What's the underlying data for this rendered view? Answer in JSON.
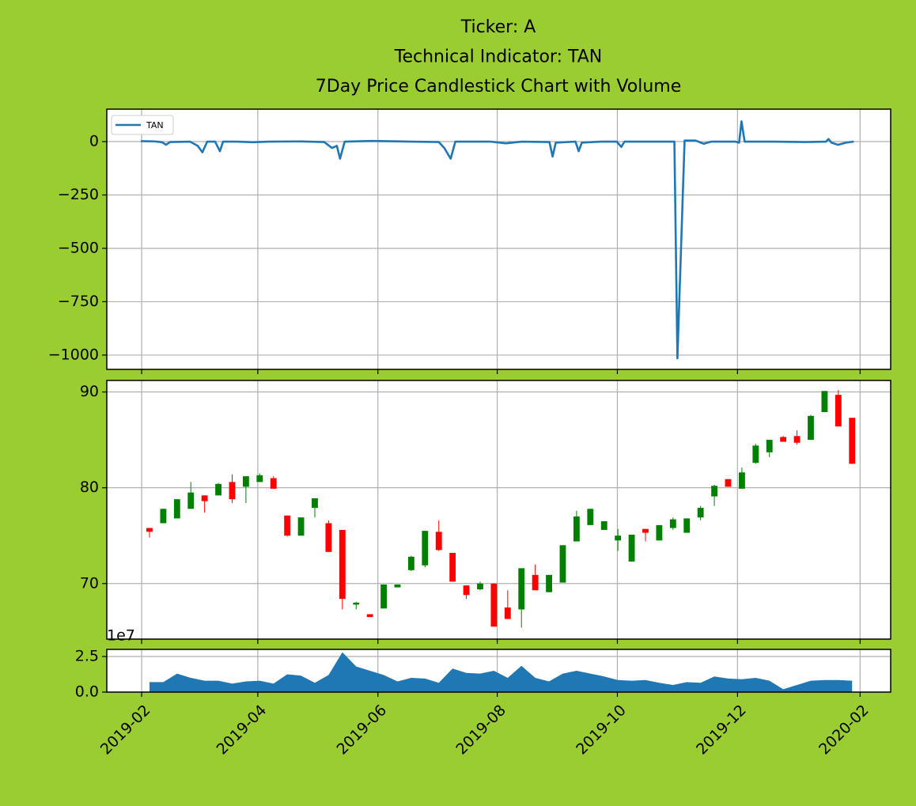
{
  "chart_data": [
    {
      "type": "line",
      "title": [
        "Ticker: A",
        "Technical Indicator: TAN",
        "7Day Price Candlestick Chart with Volume"
      ],
      "series": [
        {
          "name": "TAN",
          "color": "#1f77b4",
          "x": [
            -0.63,
            0.34,
            0.92,
            1.2,
            1.49,
            2.93,
            3.5,
            3.84,
            4.19,
            4.76,
            5.11,
            5.34,
            6.37,
            7.52,
            8.66,
            10.96,
            12.68,
            13.25,
            13.6,
            13.83,
            14.17,
            16.12,
            18.99,
            21.0,
            21.4,
            21.86,
            22.2,
            24.73,
            25.87,
            27.02,
            29.03,
            29.26,
            29.49,
            30.92,
            31.15,
            31.38,
            32.76,
            33.91,
            34.25,
            34.48,
            36.78,
            38.1,
            38.32,
            38.84,
            39.64,
            40.22,
            40.79,
            42.51,
            42.8,
            42.97,
            43.2,
            45.38,
            47.68,
            49.11,
            49.28,
            49.51,
            49.97,
            50.55,
            51.12
          ],
          "values": [
            2,
            1,
            -3,
            -15,
            -2,
            0,
            -20,
            -50,
            0,
            0,
            -45,
            0,
            0,
            -3,
            0,
            1,
            -2,
            -30,
            -20,
            -80,
            0,
            3,
            0,
            -2,
            -30,
            -80,
            0,
            0,
            -8,
            0,
            -2,
            -70,
            -5,
            0,
            -45,
            -5,
            0,
            0,
            -25,
            0,
            0,
            0,
            -1015,
            5,
            5,
            -10,
            0,
            0,
            -5,
            95,
            0,
            0,
            -2,
            0,
            12,
            -5,
            -15,
            -5,
            0
          ]
        }
      ],
      "legend": "upper left",
      "xlim": [
        -3.1,
        53.8
      ],
      "xticks": [
        -0.57,
        7.86,
        16.58,
        25.24,
        33.96,
        42.68,
        51.58
      ],
      "ylim": [
        -1067,
        152
      ],
      "yticks": [
        0,
        {
          "value": -250,
          "label": "−250"
        },
        {
          "value": -500,
          "label": "−500"
        },
        {
          "value": -750,
          "label": "−750"
        },
        {
          "value": -1000,
          "label": "−1000"
        }
      ],
      "grid": true
    },
    {
      "type": "candlestick",
      "x": [
        0,
        1,
        2,
        3,
        4,
        5,
        6,
        7,
        8,
        9,
        10,
        11,
        12,
        13,
        14,
        15,
        16,
        17,
        18,
        19,
        20,
        21,
        22,
        23,
        24,
        25,
        26,
        27,
        28,
        29,
        30,
        31,
        32,
        33,
        34,
        35,
        36,
        37,
        38,
        39,
        40,
        41,
        42,
        43,
        44,
        45,
        46,
        47,
        48,
        49,
        50,
        51
      ],
      "open": [
        75.8,
        76.3,
        76.8,
        77.8,
        79.2,
        79.2,
        80.6,
        80.1,
        80.6,
        81.0,
        77.1,
        75.0,
        77.9,
        76.3,
        75.6,
        67.8,
        66.8,
        67.4,
        69.6,
        71.4,
        71.9,
        75.4,
        73.2,
        69.8,
        69.4,
        70.0,
        67.5,
        67.3,
        70.9,
        69.1,
        70.1,
        74.4,
        76.1,
        75.6,
        74.5,
        72.3,
        75.7,
        74.5,
        75.8,
        75.3,
        76.9,
        79.1,
        80.9,
        79.9,
        82.6,
        83.7,
        85.3,
        85.4,
        85.0,
        87.9,
        89.7,
        87.3
      ],
      "close": [
        75.4,
        77.8,
        78.8,
        79.5,
        78.6,
        80.4,
        78.8,
        81.2,
        81.3,
        79.9,
        75.0,
        76.9,
        78.9,
        73.3,
        68.4,
        68.0,
        66.5,
        69.9,
        69.9,
        72.8,
        75.5,
        73.5,
        70.2,
        68.8,
        70.0,
        65.5,
        66.3,
        71.6,
        69.3,
        70.9,
        74.0,
        77.0,
        77.8,
        76.5,
        75.0,
        75.1,
        75.3,
        76.1,
        76.7,
        76.8,
        77.9,
        80.2,
        80.1,
        81.6,
        84.4,
        85.0,
        84.8,
        84.7,
        87.5,
        90.1,
        86.4,
        82.5
      ],
      "high": [
        75.8,
        77.8,
        78.8,
        80.6,
        79.2,
        80.5,
        81.4,
        81.2,
        81.5,
        81.2,
        77.1,
        76.9,
        78.9,
        76.6,
        75.6,
        68.1,
        66.8,
        69.9,
        69.9,
        72.9,
        75.5,
        76.6,
        73.2,
        69.8,
        70.2,
        70.0,
        69.3,
        71.6,
        72.0,
        70.9,
        74.0,
        77.6,
        77.8,
        76.5,
        75.7,
        75.1,
        75.7,
        76.1,
        76.9,
        76.8,
        78.1,
        80.3,
        80.9,
        82.1,
        84.6,
        85.0,
        85.4,
        86.0,
        87.6,
        90.1,
        90.2,
        87.3
      ],
      "low": [
        74.8,
        76.3,
        76.8,
        77.8,
        77.4,
        79.2,
        78.4,
        78.4,
        80.6,
        79.9,
        74.9,
        75.0,
        76.9,
        73.3,
        67.3,
        67.3,
        66.5,
        67.4,
        69.6,
        71.3,
        71.7,
        73.4,
        70.2,
        68.4,
        69.3,
        65.5,
        66.3,
        65.4,
        69.3,
        69.1,
        70.1,
        74.4,
        76.1,
        75.6,
        73.4,
        72.3,
        74.4,
        74.5,
        75.6,
        75.3,
        76.6,
        78.1,
        80.1,
        79.9,
        82.5,
        83.2,
        84.8,
        84.5,
        85.0,
        87.9,
        86.4,
        82.5
      ],
      "up_color": "#008000",
      "down_color": "#ff0000",
      "xlim": [
        -3.1,
        53.8
      ],
      "xticks": [
        -0.57,
        7.86,
        16.58,
        25.24,
        33.96,
        42.68,
        51.58
      ],
      "ylim": [
        64.2,
        91.2
      ],
      "yticks": [
        70,
        80,
        90
      ],
      "grid": true
    },
    {
      "type": "area",
      "offset_label": "1e7",
      "series": [
        {
          "color": "#1f77b4",
          "x": [
            0,
            1,
            2,
            3,
            4,
            5,
            6,
            7,
            8,
            9,
            10,
            11,
            12,
            13,
            14,
            15,
            16,
            17,
            18,
            19,
            20,
            21,
            22,
            23,
            24,
            25,
            26,
            27,
            28,
            29,
            30,
            31,
            32,
            33,
            34,
            35,
            36,
            37,
            38,
            39,
            40,
            41,
            42,
            43,
            44,
            45,
            46,
            47,
            48,
            49,
            50,
            51
          ],
          "values": [
            0.7,
            0.7,
            1.3,
            1.0,
            0.8,
            0.8,
            0.6,
            0.75,
            0.8,
            0.6,
            1.25,
            1.15,
            0.65,
            1.2,
            2.8,
            1.8,
            1.5,
            1.2,
            0.75,
            1.0,
            0.95,
            0.65,
            1.65,
            1.35,
            1.3,
            1.5,
            1.0,
            1.85,
            1.0,
            0.75,
            1.3,
            1.5,
            1.3,
            1.1,
            0.85,
            0.8,
            0.85,
            0.65,
            0.5,
            0.7,
            0.65,
            1.1,
            0.95,
            0.9,
            1.0,
            0.8,
            0.2,
            0.5,
            0.8,
            0.85,
            0.85,
            0.8
          ]
        }
      ],
      "xlim": [
        -3.1,
        53.8
      ],
      "xticks": [
        {
          "value": -0.57,
          "label": "2019-02"
        },
        {
          "value": 7.86,
          "label": "2019-04"
        },
        {
          "value": 16.58,
          "label": "2019-06"
        },
        {
          "value": 25.24,
          "label": "2019-08"
        },
        {
          "value": 33.96,
          "label": "2019-10"
        },
        {
          "value": 42.68,
          "label": "2019-12"
        },
        {
          "value": 51.58,
          "label": "2020-02"
        }
      ],
      "ylim": [
        0,
        3.0
      ],
      "yticks": [
        {
          "value": 0,
          "label": "0.0"
        },
        2.5
      ],
      "grid": true
    }
  ]
}
